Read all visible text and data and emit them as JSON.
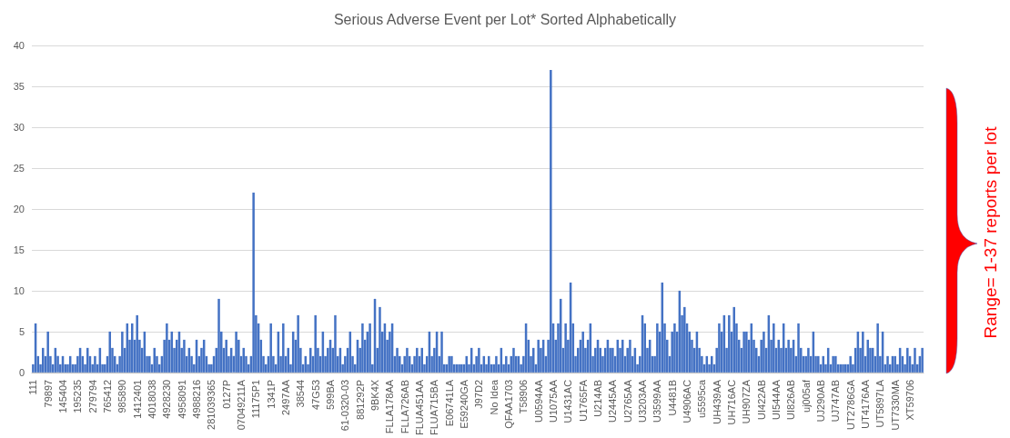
{
  "chart_data": {
    "type": "bar",
    "title": "Serious Adverse Event per Lot* Sorted Alphabetically",
    "categories": [
      "111",
      null,
      null,
      null,
      null,
      null,
      "79897",
      null,
      null,
      null,
      null,
      null,
      "145404",
      null,
      null,
      null,
      null,
      null,
      "195235",
      null,
      null,
      null,
      null,
      null,
      "279794",
      null,
      null,
      null,
      null,
      null,
      "765412",
      null,
      null,
      null,
      null,
      null,
      "985890",
      null,
      null,
      null,
      null,
      null,
      "1412401",
      null,
      null,
      null,
      null,
      null,
      "4018038",
      null,
      null,
      null,
      null,
      null,
      "4928230",
      null,
      null,
      null,
      null,
      null,
      "4958091",
      null,
      null,
      null,
      null,
      null,
      "4988216",
      null,
      null,
      null,
      null,
      null,
      "281039365",
      null,
      null,
      null,
      null,
      null,
      "0127P",
      null,
      null,
      null,
      null,
      null,
      "07049211A",
      null,
      null,
      null,
      null,
      null,
      "11175P1",
      null,
      null,
      null,
      null,
      null,
      "1341P",
      null,
      null,
      null,
      null,
      null,
      "2497AA",
      null,
      null,
      null,
      null,
      null,
      "38544",
      null,
      null,
      null,
      null,
      null,
      "47G53",
      null,
      null,
      null,
      null,
      null,
      "599BA",
      null,
      null,
      null,
      null,
      null,
      "61-0320-03",
      null,
      null,
      null,
      null,
      null,
      "881292P",
      null,
      null,
      null,
      null,
      null,
      "9BK4X",
      null,
      null,
      null,
      null,
      null,
      "FLLA178AA",
      null,
      null,
      null,
      null,
      null,
      "FLLA726AB",
      null,
      null,
      null,
      null,
      null,
      "FLUA451AA",
      null,
      null,
      null,
      null,
      null,
      "FLUA715BA",
      null,
      null,
      null,
      null,
      null,
      "E06741LA",
      null,
      null,
      null,
      null,
      null,
      "E59240GA",
      null,
      null,
      null,
      null,
      null,
      "J97D2",
      null,
      null,
      null,
      null,
      null,
      "No Idea",
      null,
      null,
      null,
      null,
      null,
      "QFAA1703",
      null,
      null,
      null,
      null,
      null,
      "T58906",
      null,
      null,
      null,
      null,
      null,
      "U0594AA",
      null,
      null,
      null,
      null,
      null,
      "U1075AA",
      null,
      null,
      null,
      null,
      null,
      "U1431AC",
      null,
      null,
      null,
      null,
      null,
      "U1765FA",
      null,
      null,
      null,
      null,
      null,
      "U214AB",
      null,
      null,
      null,
      null,
      null,
      "U2445AA",
      null,
      null,
      null,
      null,
      null,
      "U2765AA",
      null,
      null,
      null,
      null,
      null,
      "U3203AA",
      null,
      null,
      null,
      null,
      null,
      "U3599AA",
      null,
      null,
      null,
      null,
      null,
      "U4481B",
      null,
      null,
      null,
      null,
      null,
      "U4906AC",
      null,
      null,
      null,
      null,
      null,
      "u5595ca",
      null,
      null,
      null,
      null,
      null,
      "UH439AA",
      null,
      null,
      null,
      null,
      null,
      "UH716AC",
      null,
      null,
      null,
      null,
      null,
      "UH907ZA",
      null,
      null,
      null,
      null,
      null,
      "UI422AB",
      null,
      null,
      null,
      null,
      null,
      "UI544AA",
      null,
      null,
      null,
      null,
      null,
      "UI826AB",
      null,
      null,
      null,
      null,
      null,
      "uj005af",
      null,
      null,
      null,
      null,
      null,
      "UJ290AB",
      null,
      null,
      null,
      null,
      null,
      "UJ747AB",
      null,
      null,
      null,
      null,
      null,
      "UT2786GA",
      null,
      null,
      null,
      null,
      null,
      "UT4176AA",
      null,
      null,
      null,
      null,
      null,
      "UT5897LA",
      null,
      null,
      null,
      null,
      null,
      "UT7330MA",
      null,
      null,
      null,
      null,
      null,
      "XT59706",
      null,
      null,
      null,
      null,
      null
    ],
    "values": [
      1,
      6,
      2,
      1,
      3,
      2,
      5,
      2,
      1,
      3,
      2,
      1,
      2,
      1,
      1,
      2,
      1,
      1,
      2,
      3,
      2,
      1,
      3,
      2,
      1,
      2,
      1,
      3,
      1,
      1,
      2,
      5,
      3,
      2,
      1,
      2,
      5,
      3,
      6,
      4,
      6,
      4,
      7,
      4,
      3,
      5,
      2,
      2,
      1,
      3,
      2,
      1,
      2,
      4,
      6,
      4,
      5,
      3,
      4,
      5,
      3,
      4,
      2,
      3,
      2,
      1,
      4,
      2,
      3,
      4,
      2,
      1,
      1,
      2,
      3,
      9,
      5,
      3,
      4,
      2,
      3,
      2,
      5,
      4,
      2,
      3,
      2,
      1,
      2,
      22,
      7,
      6,
      4,
      2,
      1,
      2,
      6,
      2,
      1,
      5,
      2,
      6,
      2,
      3,
      1,
      5,
      4,
      7,
      3,
      1,
      2,
      1,
      3,
      2,
      7,
      3,
      2,
      5,
      2,
      3,
      4,
      3,
      7,
      2,
      3,
      1,
      2,
      3,
      5,
      2,
      1,
      4,
      3,
      6,
      4,
      5,
      6,
      1,
      9,
      3,
      8,
      5,
      6,
      4,
      5,
      6,
      2,
      3,
      2,
      1,
      2,
      3,
      2,
      1,
      2,
      3,
      2,
      3,
      1,
      2,
      5,
      2,
      3,
      5,
      2,
      5,
      1,
      1,
      2,
      2,
      1,
      1,
      1,
      1,
      1,
      2,
      1,
      3,
      1,
      2,
      3,
      1,
      2,
      1,
      2,
      1,
      1,
      2,
      1,
      3,
      1,
      2,
      1,
      2,
      3,
      2,
      2,
      1,
      2,
      6,
      4,
      2,
      3,
      1,
      4,
      3,
      4,
      2,
      4,
      37,
      6,
      4,
      6,
      9,
      3,
      6,
      4,
      11,
      6,
      2,
      3,
      4,
      5,
      3,
      4,
      6,
      2,
      3,
      4,
      3,
      2,
      3,
      4,
      3,
      3,
      2,
      4,
      3,
      4,
      2,
      3,
      4,
      2,
      3,
      1,
      2,
      7,
      6,
      3,
      4,
      2,
      2,
      6,
      5,
      11,
      6,
      4,
      2,
      5,
      6,
      5,
      10,
      7,
      8,
      6,
      5,
      4,
      3,
      5,
      3,
      2,
      1,
      2,
      1,
      2,
      1,
      3,
      6,
      5,
      7,
      3,
      7,
      5,
      8,
      6,
      4,
      3,
      5,
      5,
      4,
      6,
      4,
      3,
      2,
      4,
      5,
      3,
      7,
      4,
      6,
      3,
      4,
      3,
      6,
      3,
      4,
      3,
      4,
      2,
      6,
      3,
      2,
      2,
      3,
      2,
      5,
      2,
      2,
      1,
      2,
      1,
      3,
      1,
      2,
      2,
      1,
      1,
      1,
      1,
      1,
      2,
      1,
      3,
      5,
      3,
      5,
      2,
      4,
      3,
      3,
      2,
      6,
      2,
      5,
      1,
      2,
      1,
      2,
      2,
      1,
      3,
      2,
      1,
      3,
      2,
      1,
      3,
      1,
      2,
      3
    ],
    "color": "#4472c4",
    "ylim": [
      0,
      40
    ],
    "yticks": [
      0,
      5,
      10,
      15,
      20,
      25,
      30,
      35,
      40
    ],
    "grid": "y",
    "annotations": [
      "Range= 1-37 reports per lot"
    ]
  }
}
